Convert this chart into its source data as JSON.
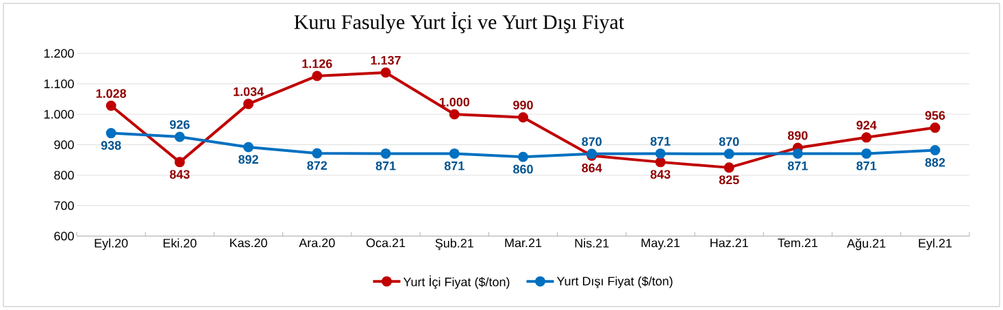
{
  "chart_data": {
    "type": "line",
    "title": "Kuru Fasulye Yurt İçi ve Yurt Dışı Fiyat",
    "categories": [
      "Eyl.20",
      "Eki.20",
      "Kas.20",
      "Ara.20",
      "Oca.21",
      "Şub.21",
      "Mar.21",
      "Nis.21",
      "May.21",
      "Haz.21",
      "Tem.21",
      "Ağu.21",
      "Eyl.21"
    ],
    "series": [
      {
        "name": "Yurt İçi Fiyat ($/ton)",
        "color": "#c00000",
        "values": [
          1028,
          843,
          1034,
          1126,
          1137,
          1000,
          990,
          864,
          843,
          825,
          890,
          924,
          956
        ],
        "value_labels": [
          "1.028",
          "843",
          "1.034",
          "1.126",
          "1.137",
          "1.000",
          "990",
          "864",
          "843",
          "825",
          "890",
          "924",
          "956"
        ]
      },
      {
        "name": "Yurt Dışı Fiyat ($/ton)",
        "color": "#0070c0",
        "values": [
          938,
          926,
          892,
          872,
          871,
          871,
          860,
          870,
          871,
          870,
          871,
          871,
          882
        ],
        "value_labels": [
          "938",
          "926",
          "892",
          "872",
          "871",
          "871",
          "860",
          "870",
          "871",
          "870",
          "871",
          "871",
          "882"
        ]
      }
    ],
    "ylim": [
      600,
      1200
    ],
    "yticks": [
      {
        "value": 600,
        "label": "600"
      },
      {
        "value": 700,
        "label": "700"
      },
      {
        "value": 800,
        "label": "800"
      },
      {
        "value": 900,
        "label": "900"
      },
      {
        "value": 1000,
        "label": "1.000"
      },
      {
        "value": 1100,
        "label": "1.100"
      },
      {
        "value": 1200,
        "label": "1.200"
      }
    ],
    "grid": "y",
    "legend": "bottom",
    "marker": "circle",
    "line_style": "solid"
  }
}
